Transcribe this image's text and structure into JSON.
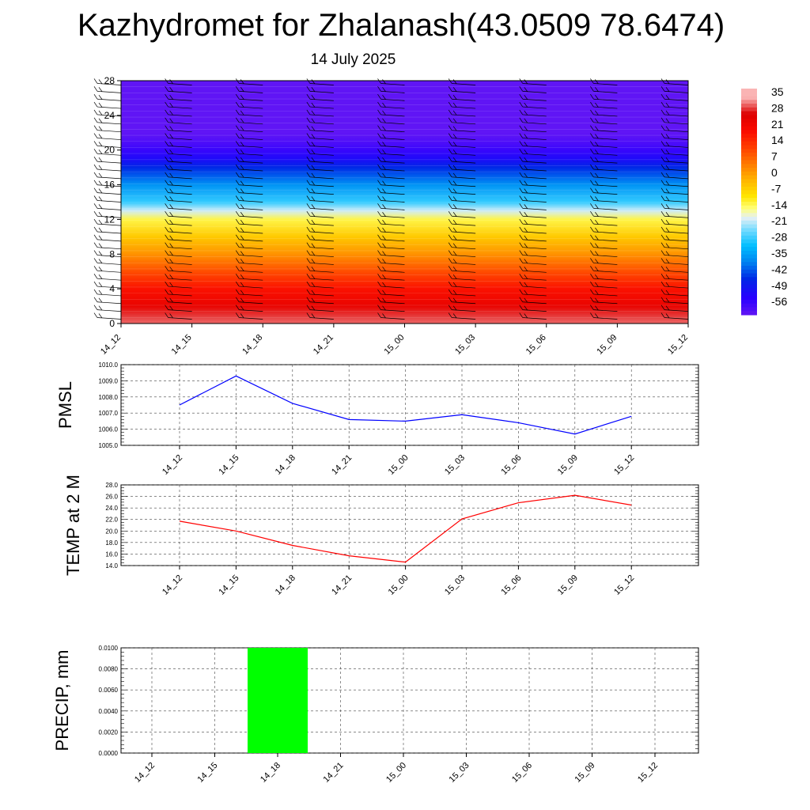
{
  "header": {
    "title": "Kazhydromet for Zhalanash(43.0509 78.6474)",
    "date": "14 July 2025"
  },
  "chart_data": [
    {
      "type": "heatmap",
      "title": "Kazhydromet for Zhalanash(43.0509 78.6474)",
      "subtitle": "14 July 2025",
      "categories": [
        "14_12",
        "14_15",
        "14_18",
        "14_21",
        "15_00",
        "15_03",
        "15_06",
        "15_09",
        "15_12"
      ],
      "y_ticks": [
        "0",
        "4",
        "8",
        "12",
        "16",
        "20",
        "24",
        "28"
      ],
      "ylim": [
        0,
        28
      ],
      "temperature_profile": {
        "levels": [
          0,
          1,
          2,
          4,
          6,
          8,
          10,
          12,
          13,
          14,
          16,
          18,
          19,
          20,
          21,
          22,
          24,
          26,
          28
        ],
        "values": [
          32,
          30,
          25,
          20,
          12,
          4,
          -3,
          -10,
          -17,
          -25,
          -33,
          -42,
          -48,
          -52,
          -55,
          -57,
          -57,
          -57,
          -57
        ]
      },
      "colorbar": {
        "labels": [
          "35",
          "28",
          "21",
          "14",
          "7",
          "0",
          "-7",
          "-14",
          "-21",
          "-28",
          "-35",
          "-42",
          "-49",
          "-56"
        ]
      },
      "wind_barbs": "present"
    },
    {
      "type": "line",
      "ylabel": "PMSL",
      "categories": [
        "14_12",
        "14_15",
        "14_18",
        "14_21",
        "15_00",
        "15_03",
        "15_06",
        "15_09",
        "15_12"
      ],
      "values": [
        1007.5,
        1009.3,
        1007.6,
        1006.6,
        1006.5,
        1006.9,
        1006.4,
        1005.7,
        1006.8
      ],
      "y_ticks": [
        "1010.0",
        "1009.0",
        "1008.0",
        "1007.0",
        "1006.0",
        "1005.0"
      ],
      "ylim": [
        1005.0,
        1010.0
      ],
      "grid": true,
      "color": "#0000ff"
    },
    {
      "type": "line",
      "ylabel": "TEMP at 2 M",
      "categories": [
        "14_12",
        "14_15",
        "14_18",
        "14_21",
        "15_00",
        "15_03",
        "15_06",
        "15_09",
        "15_12"
      ],
      "values": [
        21.7,
        20.0,
        17.5,
        15.7,
        14.6,
        22.1,
        24.9,
        26.2,
        24.5
      ],
      "y_ticks": [
        "28.0",
        "26.0",
        "24.0",
        "22.0",
        "20.0",
        "18.0",
        "16.0",
        "14.0"
      ],
      "ylim": [
        14.0,
        28.0
      ],
      "grid": true,
      "color": "#ff0000"
    },
    {
      "type": "bar",
      "ylabel": "PRECIP, mm",
      "categories": [
        "14_12",
        "14_15",
        "14_18",
        "14_21",
        "15_00",
        "15_03",
        "15_06",
        "15_09",
        "15_12"
      ],
      "values": [
        0,
        0,
        0.01,
        0,
        0,
        0,
        0,
        0,
        0
      ],
      "y_ticks": [
        "0.0100",
        "0.0080",
        "0.0060",
        "0.0040",
        "0.0020",
        "0.0000"
      ],
      "ylim": [
        0,
        0.01
      ],
      "grid": true,
      "color": "#00ff00"
    }
  ]
}
